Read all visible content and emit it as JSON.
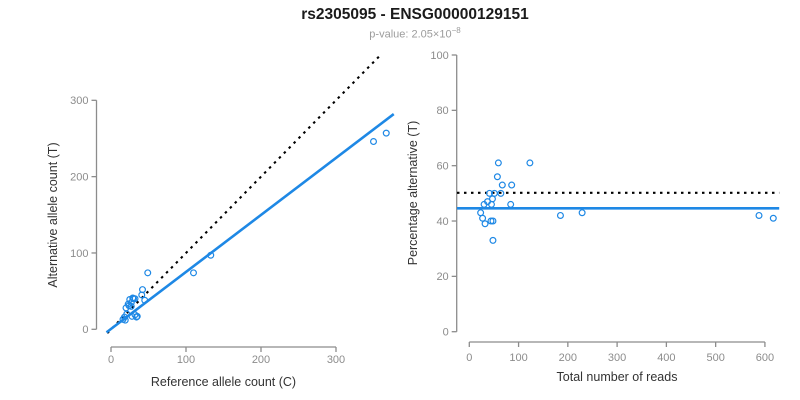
{
  "header": {
    "title": "rs2305095 - ENSG00000129151",
    "pvalue_prefix": "p-value: 2.05×10",
    "pvalue_exponent": "−8"
  },
  "colors": {
    "accent_blue": "#1E88E5",
    "axis_gray": "#8C8C8C",
    "tick_label_gray": "#8C8C8C",
    "axis_title_dark": "#333333",
    "dotted_black": "#000000",
    "title_black": "#1B1B1B",
    "subtitle_gray": "#9C9C9C"
  },
  "chart_data": [
    {
      "id": "allele-count-scatter",
      "type": "scatter",
      "xlabel": "Reference allele count (C)",
      "ylabel": "Alternative allele count (T)",
      "xticks": [
        0,
        100,
        200,
        300
      ],
      "yticks": [
        0,
        100,
        200,
        300
      ],
      "xlim": [
        -6,
        377
      ],
      "ylim": [
        -6,
        360
      ],
      "grid": false,
      "legend": "none",
      "marker": "open-circle",
      "points": [
        [
          16,
          13
        ],
        [
          18,
          16
        ],
        [
          19,
          12
        ],
        [
          21,
          20
        ],
        [
          20,
          28
        ],
        [
          23,
          33
        ],
        [
          24,
          31
        ],
        [
          27,
          30
        ],
        [
          27,
          35
        ],
        [
          25,
          39
        ],
        [
          29,
          41
        ],
        [
          30,
          40
        ],
        [
          32,
          40
        ],
        [
          32,
          19
        ],
        [
          35,
          17
        ],
        [
          28,
          17
        ],
        [
          34,
          16
        ],
        [
          41,
          45
        ],
        [
          42,
          52
        ],
        [
          45,
          38
        ],
        [
          49,
          74
        ],
        [
          110,
          74
        ],
        [
          133,
          97
        ],
        [
          350,
          246
        ],
        [
          367,
          257
        ]
      ],
      "lines": [
        {
          "name": "identity-line",
          "style": "dotted",
          "color_key": "dotted_black",
          "x1": -5,
          "y1": -5,
          "x2": 361,
          "y2": 361
        },
        {
          "name": "regression-line",
          "style": "solid",
          "color_key": "accent_blue",
          "x1": -6,
          "y1": -4,
          "x2": 377,
          "y2": 282
        }
      ]
    },
    {
      "id": "percentage-vs-reads-scatter",
      "type": "scatter",
      "xlabel": "Total number of reads",
      "ylabel": "Percentage alternative (T)",
      "xticks": [
        0,
        100,
        200,
        300,
        400,
        500,
        600
      ],
      "yticks": [
        0,
        20,
        40,
        60,
        80,
        100
      ],
      "xlim": [
        -25,
        629
      ],
      "ylim": [
        0,
        100
      ],
      "grid": false,
      "legend": "none",
      "marker": "open-circle",
      "points": [
        [
          23,
          43
        ],
        [
          27,
          41
        ],
        [
          30,
          46
        ],
        [
          32,
          39
        ],
        [
          37,
          47
        ],
        [
          41,
          50
        ],
        [
          44,
          40
        ],
        [
          45,
          46
        ],
        [
          47,
          48
        ],
        [
          48,
          40
        ],
        [
          48,
          33
        ],
        [
          51,
          50
        ],
        [
          57,
          56
        ],
        [
          59,
          61
        ],
        [
          64,
          50
        ],
        [
          67,
          53
        ],
        [
          84,
          46
        ],
        [
          86,
          53
        ],
        [
          123,
          61
        ],
        [
          185,
          42
        ],
        [
          229,
          43
        ],
        [
          588,
          42
        ],
        [
          617,
          41
        ]
      ],
      "lines": [
        {
          "name": "expected-50pct-line",
          "style": "dotted",
          "color_key": "dotted_black",
          "x1": -25,
          "y1": 50.2,
          "x2": 629,
          "y2": 50.2
        },
        {
          "name": "mean-percentage-line",
          "style": "solid",
          "color_key": "accent_blue",
          "x1": -25,
          "y1": 44.6,
          "x2": 629,
          "y2": 44.6
        }
      ]
    }
  ]
}
